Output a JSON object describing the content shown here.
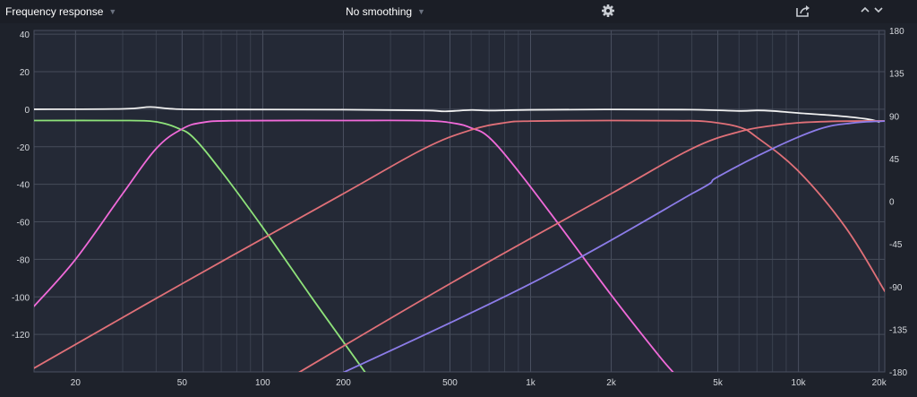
{
  "toolbar": {
    "title": "Frequency response",
    "smoothing": "No smoothing",
    "icons": {
      "title_dropdown": "chevron-down-icon",
      "smoothing_dropdown": "chevron-down-icon",
      "settings": "gear-icon",
      "export": "share-icon",
      "expand": "chevron-up-icon",
      "collapse": "chevron-down-icon"
    }
  },
  "chart_data": {
    "type": "line",
    "x_scale": "log",
    "xlim": [
      14,
      21000
    ],
    "ylim": [
      -140,
      42
    ],
    "y2lim": [
      -180,
      180
    ],
    "grid": true,
    "x_tick_labels": [
      "20",
      "50",
      "100",
      "200",
      "500",
      "1k",
      "2k",
      "5k",
      "10k",
      "20k"
    ],
    "x_tick_values": [
      20,
      50,
      100,
      200,
      500,
      1000,
      2000,
      5000,
      10000,
      20000
    ],
    "y_ticks": [
      40,
      20,
      0,
      -20,
      -40,
      -60,
      -80,
      -100,
      -120
    ],
    "y_tick_labels": [
      "40",
      "20",
      "0",
      "-20",
      "-40",
      "-60",
      "-80",
      "-100",
      "-120"
    ],
    "y2_ticks": [
      180,
      135,
      90,
      45,
      0,
      -45,
      -90,
      -135,
      -180
    ],
    "y2_tick_labels": [
      "180",
      "135",
      "90",
      "45",
      "0",
      "-45",
      "-90",
      "-135",
      "-180"
    ],
    "series": [
      {
        "color": "#f0f0f0",
        "points": [
          [
            14,
            0
          ],
          [
            30,
            0.2
          ],
          [
            38,
            1.2
          ],
          [
            45,
            0.3
          ],
          [
            60,
            -0.1
          ],
          [
            200,
            -0.2
          ],
          [
            400,
            -0.6
          ],
          [
            480,
            -1.1
          ],
          [
            600,
            -0.4
          ],
          [
            700,
            -0.7
          ],
          [
            1000,
            -0.3
          ],
          [
            2000,
            -0.1
          ],
          [
            4000,
            -0.2
          ],
          [
            6000,
            -0.9
          ],
          [
            7000,
            -0.6
          ],
          [
            8000,
            -0.9
          ],
          [
            10000,
            -2
          ],
          [
            14000,
            -3.5
          ],
          [
            18000,
            -5.2
          ],
          [
            20000,
            -6.7
          ]
        ]
      },
      {
        "color": "#8ee27a",
        "points": [
          [
            14,
            -6
          ],
          [
            30,
            -6
          ],
          [
            38,
            -6.3
          ],
          [
            43,
            -7.6
          ],
          [
            48,
            -10
          ],
          [
            55,
            -15
          ],
          [
            70,
            -33
          ],
          [
            100,
            -63
          ],
          [
            150,
            -99
          ],
          [
            200,
            -124
          ],
          [
            270,
            -150
          ]
        ]
      },
      {
        "color": "#f06ad9",
        "points": [
          [
            14,
            -105
          ],
          [
            20,
            -80
          ],
          [
            30,
            -45
          ],
          [
            40,
            -21
          ],
          [
            50,
            -10.5
          ],
          [
            60,
            -7
          ],
          [
            80,
            -6.1
          ],
          [
            200,
            -6
          ],
          [
            400,
            -6.1
          ],
          [
            520,
            -7.5
          ],
          [
            600,
            -10
          ],
          [
            700,
            -15
          ],
          [
            900,
            -33
          ],
          [
            1300,
            -63
          ],
          [
            2000,
            -99
          ],
          [
            3000,
            -131
          ],
          [
            3500,
            -142
          ]
        ]
      },
      {
        "color": "#e07078",
        "points": [
          [
            14,
            -138
          ],
          [
            50,
            -93
          ],
          [
            200,
            -45
          ],
          [
            400,
            -21
          ],
          [
            600,
            -11
          ],
          [
            800,
            -7.2
          ],
          [
            1000,
            -6.3
          ],
          [
            2000,
            -6
          ],
          [
            3500,
            -6.1
          ],
          [
            4500,
            -6.5
          ],
          [
            6000,
            -9.5
          ],
          [
            7000,
            -15
          ],
          [
            10000,
            -33
          ],
          [
            15000,
            -63
          ],
          [
            21000,
            -97
          ]
        ]
      },
      {
        "color": "#e07078",
        "points": [
          [
            120,
            -145
          ],
          [
            500,
            -93
          ],
          [
            2000,
            -45
          ],
          [
            4000,
            -21
          ],
          [
            6000,
            -12
          ],
          [
            8000,
            -8.7
          ],
          [
            10000,
            -7.2
          ],
          [
            14000,
            -6.4
          ],
          [
            21000,
            -6.2
          ]
        ]
      },
      {
        "color": "#8c7ce8",
        "points": [
          [
            170,
            -145
          ],
          [
            1000,
            -93
          ],
          [
            4000,
            -45
          ],
          [
            5000,
            -36
          ],
          [
            8000,
            -21
          ],
          [
            12000,
            -10.5
          ],
          [
            16000,
            -7.3
          ],
          [
            21000,
            -6.3
          ]
        ]
      }
    ]
  }
}
